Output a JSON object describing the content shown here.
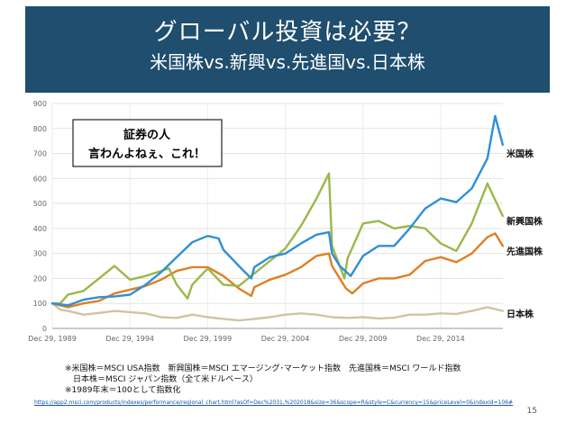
{
  "slide": {
    "title": "グローバル投資は必要？",
    "subtitle": "米国株vs.新興vs.先進国vs.日本株",
    "callout_line1": "証券の人",
    "callout_line2": "言わんよねぇ、これ！",
    "notes": [
      "※米国株＝MSCI USA指数　新興国株＝MSCI エマージング･マーケット指数　先進国株＝MSCI ワールド指数",
      "　日本株＝MSCI ジャパン指数（全て米ドルベース）",
      "※1989年末＝100として指数化"
    ],
    "source_url": "https://app2.msci.com/products/indexes/performance/regional_chart.html?asOf=Dec%2031,%202018&size=36&scope=R&style=C&currency=15&priceLevel=0&indexId=106#",
    "page_number": "15"
  },
  "colors": {
    "title_bg": "#1f4e6e",
    "us": "#2f8fd6",
    "emerging": "#9ab84b",
    "developed": "#e07f22",
    "japan": "#cfc4a2"
  },
  "chart_data": {
    "type": "line",
    "x_ticks": [
      "Dec 29, 1989",
      "Dec 29, 1994",
      "Dec 29, 1999",
      "Dec 29, 2004",
      "Dec 29, 2009",
      "Dec 29, 2014"
    ],
    "x_range": [
      1989.99,
      2019.0
    ],
    "y_ticks": [
      0,
      100,
      200,
      300,
      400,
      500,
      600,
      700,
      800,
      900
    ],
    "ylim": [
      0,
      900
    ],
    "grid": true,
    "series": [
      {
        "name": "米国株",
        "color": "#2f8fd6",
        "x": [
          1989.99,
          1991,
          1992,
          1993,
          1994,
          1995,
          1996,
          1997,
          1998,
          1999,
          2000,
          2000.7,
          2001,
          2002,
          2002.8,
          2003,
          2004,
          2005,
          2006,
          2007,
          2007.8,
          2008,
          2008.5,
          2009.2,
          2010,
          2011,
          2012,
          2013,
          2014,
          2015,
          2016,
          2017,
          2018,
          2018.5,
          2018.99
        ],
        "y": [
          100,
          92,
          115,
          125,
          128,
          135,
          175,
          225,
          285,
          345,
          370,
          360,
          315,
          250,
          200,
          245,
          285,
          300,
          340,
          375,
          385,
          300,
          250,
          210,
          290,
          330,
          330,
          400,
          480,
          520,
          505,
          560,
          680,
          850,
          735
        ]
      },
      {
        "name": "新興国株",
        "color": "#9ab84b",
        "x": [
          1989.99,
          1990.5,
          1991,
          1992,
          1993,
          1994,
          1995,
          1996,
          1997,
          1997.5,
          1998,
          1998.7,
          1999,
          2000,
          2001,
          2002,
          2003,
          2004,
          2005,
          2006,
          2007,
          2007.8,
          2008,
          2008.8,
          2009,
          2010,
          2011,
          2012,
          2013,
          2014,
          2015,
          2016,
          2017,
          2018,
          2018.99
        ],
        "y": [
          100,
          100,
          135,
          150,
          200,
          250,
          195,
          210,
          230,
          240,
          175,
          120,
          175,
          240,
          175,
          170,
          220,
          270,
          320,
          410,
          520,
          620,
          330,
          200,
          280,
          420,
          430,
          400,
          410,
          400,
          340,
          310,
          420,
          580,
          450
        ]
      },
      {
        "name": "先進国株",
        "color": "#e07f22",
        "x": [
          1989.99,
          1991,
          1992,
          1993,
          1994,
          1995,
          1996,
          1997,
          1998,
          1999,
          2000,
          2001,
          2002,
          2002.8,
          2003,
          2004,
          2005,
          2006,
          2007,
          2007.8,
          2008,
          2008.9,
          2009.3,
          2010,
          2011,
          2012,
          2013,
          2014,
          2015,
          2016,
          2017,
          2018,
          2018.5,
          2018.99
        ],
        "y": [
          100,
          85,
          100,
          110,
          140,
          155,
          170,
          195,
          230,
          245,
          245,
          210,
          160,
          130,
          165,
          195,
          215,
          245,
          290,
          300,
          250,
          160,
          140,
          180,
          200,
          200,
          215,
          270,
          285,
          265,
          300,
          365,
          380,
          330
        ]
      },
      {
        "name": "日本株",
        "color": "#cfc4a2",
        "x": [
          1989.99,
          1990.5,
          1991,
          1992,
          1993,
          1994,
          1995,
          1996,
          1997,
          1998,
          1999,
          2000,
          2001,
          2002,
          2003,
          2004,
          2005,
          2006,
          2007,
          2008,
          2009,
          2010,
          2011,
          2012,
          2013,
          2014,
          2015,
          2016,
          2017,
          2018,
          2018.99
        ],
        "y": [
          100,
          75,
          70,
          55,
          62,
          70,
          65,
          60,
          45,
          42,
          55,
          45,
          38,
          32,
          38,
          45,
          55,
          60,
          55,
          45,
          42,
          45,
          40,
          43,
          55,
          55,
          60,
          58,
          70,
          85,
          70
        ]
      }
    ]
  }
}
